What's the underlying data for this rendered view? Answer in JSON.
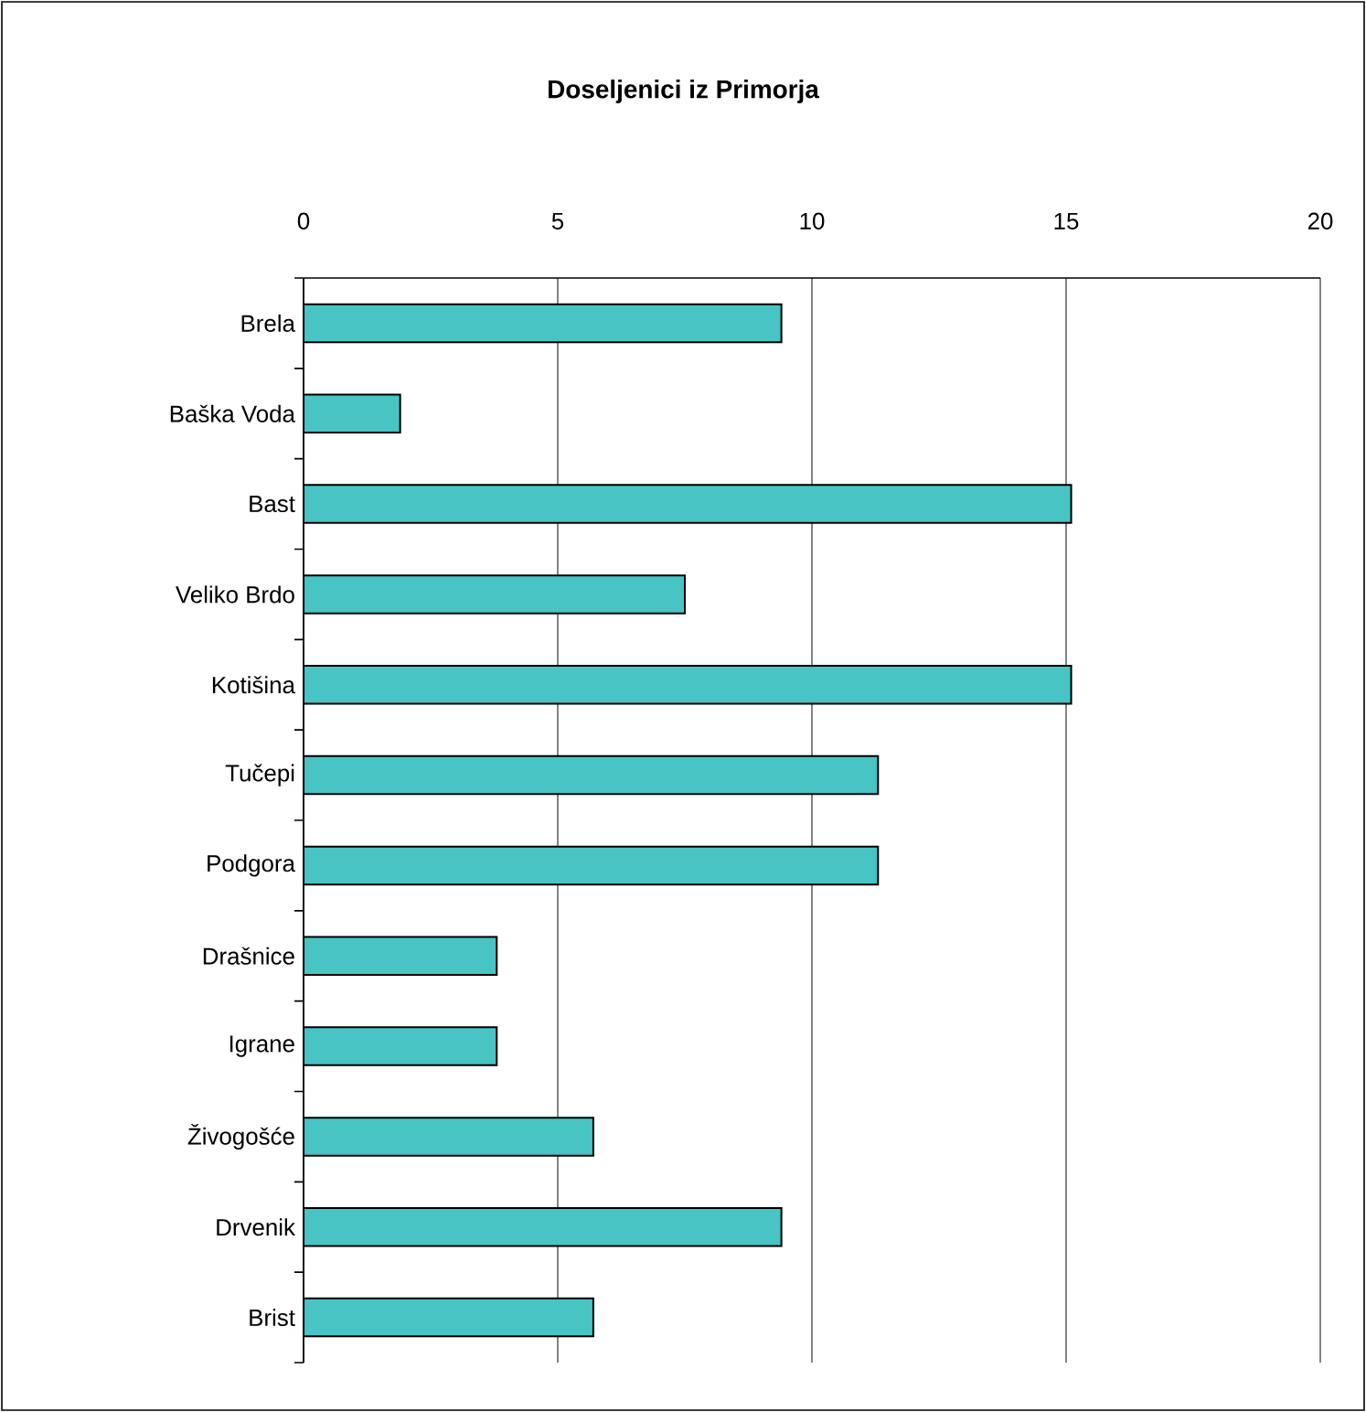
{
  "chart_data": {
    "type": "bar",
    "orientation": "horizontal",
    "title": "Doseljenici iz Primorja",
    "categories": [
      "Brela",
      "Baška Voda",
      "Bast",
      "Veliko Brdo",
      "Kotišina",
      "Tučepi",
      "Podgora",
      "Drašnice",
      "Igrane",
      "Živogošće",
      "Drvenik",
      "Brist"
    ],
    "values": [
      9.4,
      1.9,
      15.1,
      7.5,
      15.1,
      11.3,
      11.3,
      3.8,
      3.8,
      5.7,
      9.4,
      5.7
    ],
    "color": "#48c4c4",
    "xlim": [
      0,
      20
    ],
    "xticks": [
      0,
      5,
      10,
      15,
      20
    ],
    "grid": "x"
  }
}
